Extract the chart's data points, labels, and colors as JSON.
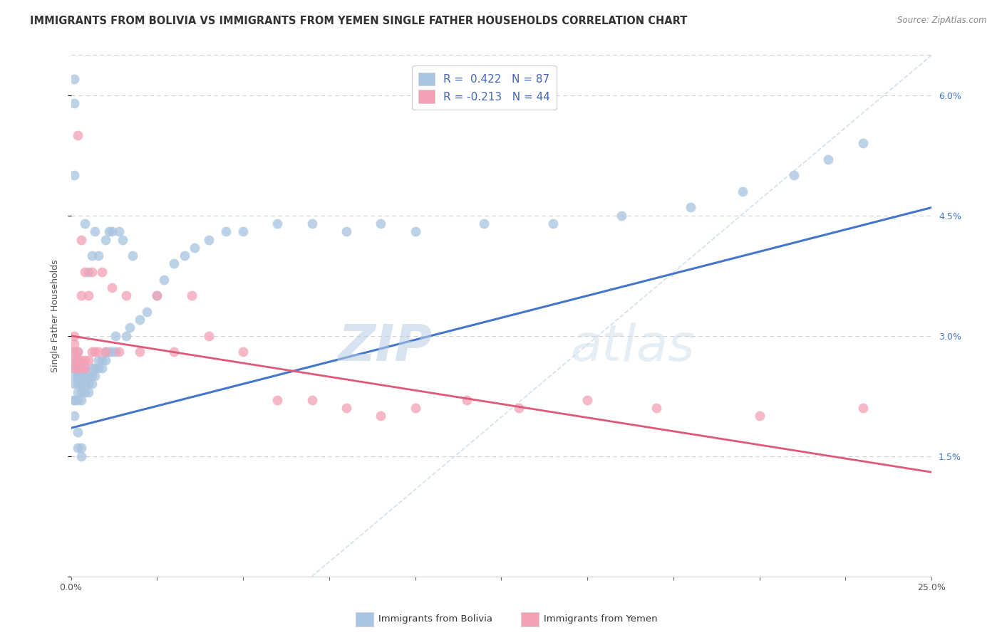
{
  "title": "IMMIGRANTS FROM BOLIVIA VS IMMIGRANTS FROM YEMEN SINGLE FATHER HOUSEHOLDS CORRELATION CHART",
  "source": "Source: ZipAtlas.com",
  "ylabel": "Single Father Households",
  "xlim": [
    0.0,
    0.25
  ],
  "ylim": [
    0.0,
    0.065
  ],
  "xticks": [
    0.0,
    0.025,
    0.05,
    0.075,
    0.1,
    0.125,
    0.15,
    0.175,
    0.2,
    0.225,
    0.25
  ],
  "yticks": [
    0.0,
    0.015,
    0.03,
    0.045,
    0.06
  ],
  "bolivia_color": "#a8c4e0",
  "bolivia_edge_color": "#a8c4e0",
  "yemen_color": "#f4a0b5",
  "yemen_edge_color": "#f4a0b5",
  "bolivia_line_color": "#4477cc",
  "yemen_line_color": "#e05878",
  "ref_line_color": "#c8d8e8",
  "legend_bolivia_label": "R =  0.422   N = 87",
  "legend_yemen_label": "R = -0.213   N = 44",
  "legend_bolivia_patch_color": "#a8c4e0",
  "legend_yemen_patch_color": "#f4a0b5",
  "watermark_zip": "ZIP",
  "watermark_atlas": "atlas",
  "background_color": "#ffffff",
  "grid_color": "#cccccc",
  "title_fontsize": 10.5,
  "axis_label_fontsize": 9,
  "tick_fontsize": 9,
  "legend_fontsize": 11,
  "right_ytick_color": "#4477cc",
  "scatter_size": 100,
  "bolivia_line_start_x": 0.0,
  "bolivia_line_start_y": 0.0185,
  "bolivia_line_end_x": 0.25,
  "bolivia_line_end_y": 0.046,
  "yemen_line_start_x": 0.0,
  "yemen_line_start_y": 0.03,
  "yemen_line_end_x": 0.25,
  "yemen_line_end_y": 0.013,
  "ref_line_start_x": 0.07,
  "ref_line_start_y": 0.0,
  "ref_line_end_x": 0.25,
  "ref_line_end_y": 0.065,
  "bolivia_x": [
    0.001,
    0.001,
    0.001,
    0.001,
    0.001,
    0.001,
    0.001,
    0.001,
    0.001,
    0.002,
    0.002,
    0.002,
    0.002,
    0.002,
    0.002,
    0.002,
    0.002,
    0.003,
    0.003,
    0.003,
    0.003,
    0.003,
    0.004,
    0.004,
    0.004,
    0.004,
    0.004,
    0.005,
    0.005,
    0.005,
    0.005,
    0.006,
    0.006,
    0.006,
    0.006,
    0.007,
    0.007,
    0.007,
    0.008,
    0.008,
    0.008,
    0.009,
    0.009,
    0.01,
    0.01,
    0.01,
    0.011,
    0.011,
    0.012,
    0.012,
    0.013,
    0.013,
    0.014,
    0.015,
    0.016,
    0.017,
    0.018,
    0.02,
    0.022,
    0.025,
    0.027,
    0.03,
    0.033,
    0.036,
    0.04,
    0.045,
    0.05,
    0.06,
    0.07,
    0.08,
    0.09,
    0.1,
    0.12,
    0.14,
    0.16,
    0.18,
    0.195,
    0.21,
    0.22,
    0.23,
    0.001,
    0.001,
    0.002,
    0.002,
    0.003,
    0.003,
    0.001
  ],
  "bolivia_y": [
    0.022,
    0.024,
    0.025,
    0.026,
    0.026,
    0.027,
    0.028,
    0.022,
    0.02,
    0.022,
    0.023,
    0.024,
    0.025,
    0.025,
    0.026,
    0.027,
    0.028,
    0.022,
    0.023,
    0.024,
    0.025,
    0.026,
    0.023,
    0.024,
    0.025,
    0.026,
    0.044,
    0.023,
    0.024,
    0.025,
    0.038,
    0.024,
    0.025,
    0.026,
    0.04,
    0.025,
    0.026,
    0.043,
    0.026,
    0.027,
    0.04,
    0.026,
    0.027,
    0.027,
    0.028,
    0.042,
    0.028,
    0.043,
    0.028,
    0.043,
    0.028,
    0.03,
    0.043,
    0.042,
    0.03,
    0.031,
    0.04,
    0.032,
    0.033,
    0.035,
    0.037,
    0.039,
    0.04,
    0.041,
    0.042,
    0.043,
    0.043,
    0.044,
    0.044,
    0.043,
    0.044,
    0.043,
    0.044,
    0.044,
    0.045,
    0.046,
    0.048,
    0.05,
    0.052,
    0.054,
    0.059,
    0.05,
    0.018,
    0.016,
    0.016,
    0.015,
    0.062
  ],
  "yemen_x": [
    0.001,
    0.001,
    0.001,
    0.001,
    0.001,
    0.002,
    0.002,
    0.002,
    0.002,
    0.003,
    0.003,
    0.003,
    0.003,
    0.004,
    0.004,
    0.004,
    0.005,
    0.005,
    0.006,
    0.006,
    0.007,
    0.008,
    0.009,
    0.01,
    0.012,
    0.014,
    0.016,
    0.02,
    0.025,
    0.03,
    0.035,
    0.04,
    0.05,
    0.06,
    0.07,
    0.08,
    0.09,
    0.1,
    0.115,
    0.13,
    0.15,
    0.17,
    0.2,
    0.23
  ],
  "yemen_y": [
    0.026,
    0.027,
    0.028,
    0.029,
    0.03,
    0.026,
    0.027,
    0.028,
    0.055,
    0.026,
    0.027,
    0.035,
    0.042,
    0.026,
    0.027,
    0.038,
    0.027,
    0.035,
    0.028,
    0.038,
    0.028,
    0.028,
    0.038,
    0.028,
    0.036,
    0.028,
    0.035,
    0.028,
    0.035,
    0.028,
    0.035,
    0.03,
    0.028,
    0.022,
    0.022,
    0.021,
    0.02,
    0.021,
    0.022,
    0.021,
    0.022,
    0.021,
    0.02,
    0.021
  ]
}
